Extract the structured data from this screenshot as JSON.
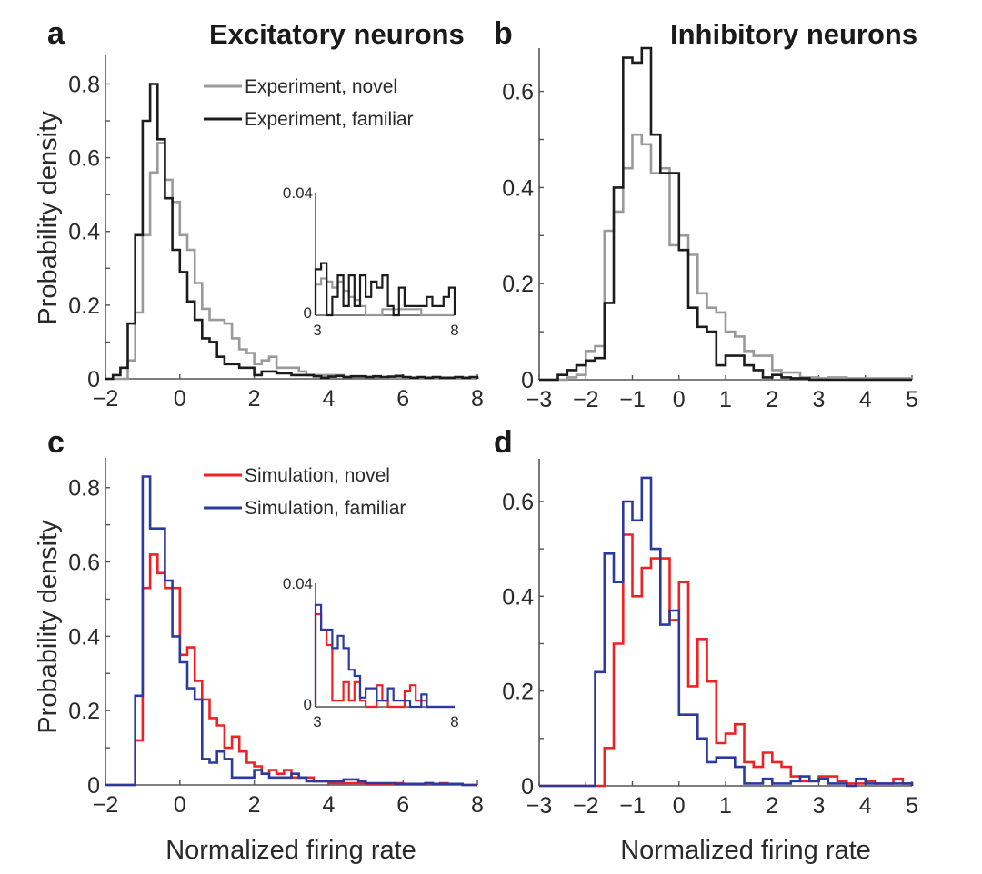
{
  "figure": {
    "colors": {
      "experiment_novel": "#9a9a9a",
      "experiment_familiar": "#1c1c1c",
      "simulation_novel": "#ee2222",
      "simulation_familiar": "#2b3a9e"
    }
  },
  "chart_data": [
    {
      "id": "a",
      "type": "histogram-step",
      "panel_letter": "a",
      "title": "Excitatory neurons",
      "xlabel": "",
      "ylabel": "Probability density",
      "xlim": [
        -2,
        8
      ],
      "ylim": [
        0,
        0.88
      ],
      "xticks": [
        -2,
        0,
        2,
        4,
        6,
        8
      ],
      "xtick_labels": [
        "−2",
        "0",
        "2",
        "4",
        "6",
        "8"
      ],
      "yticks": [
        0,
        0.2,
        0.4,
        0.6,
        0.8
      ],
      "ytick_labels": [
        "0",
        "0.2",
        "0.4",
        "0.6",
        "0.8"
      ],
      "bin_start": -2.0,
      "bin_width": 0.2,
      "legend": {
        "placement": "top-right",
        "entries": [
          "Experiment, novel",
          "Experiment, familiar"
        ]
      },
      "series": [
        {
          "name": "Experiment, novel",
          "color_key": "experiment_novel",
          "values": [
            0,
            0,
            0,
            0.05,
            0.18,
            0.39,
            0.56,
            0.64,
            0.54,
            0.48,
            0.39,
            0.35,
            0.26,
            0.19,
            0.16,
            0.16,
            0.15,
            0.11,
            0.08,
            0.07,
            0.04,
            0.05,
            0.06,
            0.03,
            0.03,
            0.03,
            0.02,
            0.01,
            0.01,
            0.01,
            0.01,
            0.01,
            0.005,
            0.005,
            0.005,
            0.005,
            0.005,
            0.003,
            0.003,
            0.003,
            0.003,
            0.002,
            0.002,
            0.002,
            0.002,
            0.002,
            0.002,
            0.002,
            0.002,
            0.002
          ]
        },
        {
          "name": "Experiment, familiar",
          "color_key": "experiment_familiar",
          "values": [
            0,
            0.01,
            0.03,
            0.15,
            0.39,
            0.7,
            0.8,
            0.65,
            0.49,
            0.35,
            0.29,
            0.21,
            0.16,
            0.11,
            0.1,
            0.06,
            0.04,
            0.04,
            0.03,
            0.03,
            0.01,
            0.02,
            0.02,
            0.015,
            0.015,
            0.01,
            0.01,
            0.01,
            0.007,
            0.003,
            0.006,
            0.008,
            0.005,
            0.007,
            0.007,
            0.005,
            0.007,
            0.005,
            0.006,
            0.008,
            0.005,
            0.003,
            0.005,
            0.003,
            0.005,
            0.003,
            0.003,
            0.005,
            0.003,
            0.005
          ]
        }
      ],
      "inset": {
        "xlim": [
          3,
          8
        ],
        "ylim": [
          0,
          0.04
        ],
        "xtick_labels": [
          "3",
          "8"
        ],
        "ytick_labels": [
          "0",
          "0.04"
        ],
        "bin_start": 3.0,
        "bin_width": 0.2,
        "series": [
          {
            "name": "Experiment, novel",
            "color_key": "experiment_novel",
            "values": [
              0.01,
              0.012,
              0.011,
              0.009,
              0.011,
              0.008,
              0.006,
              0.005,
              0.003,
              0,
              0,
              0,
              0.002,
              0.002,
              0.002,
              0.002,
              0.002,
              0.002,
              0.002,
              0,
              0,
              0,
              0,
              0,
              0
            ]
          },
          {
            "name": "Experiment, familiar",
            "color_key": "experiment_familiar",
            "values": [
              0.015,
              0.017,
              0,
              0.006,
              0.013,
              0.003,
              0.013,
              0.003,
              0.013,
              0.006,
              0.011,
              0.009,
              0.013,
              0.003,
              0,
              0.009,
              0.003,
              0.003,
              0.003,
              0.003,
              0.006,
              0.003,
              0.003,
              0.006,
              0.009
            ]
          }
        ]
      }
    },
    {
      "id": "b",
      "type": "histogram-step",
      "panel_letter": "b",
      "title": "Inhibitory neurons",
      "xlabel": "",
      "ylabel": "",
      "xlim": [
        -3,
        5
      ],
      "ylim": [
        0,
        0.69
      ],
      "xticks": [
        -3,
        -2,
        -1,
        0,
        1,
        2,
        3,
        4,
        5
      ],
      "xtick_labels": [
        "−3",
        "−2",
        "−1",
        "0",
        "1",
        "2",
        "3",
        "4",
        "5"
      ],
      "yticks": [
        0,
        0.2,
        0.4,
        0.6
      ],
      "ytick_labels": [
        "0",
        "0.2",
        "0.4",
        "0.6"
      ],
      "bin_start": -3.0,
      "bin_width": 0.2,
      "series": [
        {
          "name": "Experiment, novel",
          "color_key": "experiment_novel",
          "values": [
            0,
            0,
            0,
            0.005,
            0.01,
            0.06,
            0.07,
            0.31,
            0.35,
            0.44,
            0.51,
            0.49,
            0.43,
            0.44,
            0.28,
            0.3,
            0.26,
            0.18,
            0.15,
            0.14,
            0.1,
            0.09,
            0.06,
            0.05,
            0.05,
            0.02,
            0.015,
            0.015,
            0.005,
            0.005,
            0.003,
            0.005,
            0.005,
            0.003,
            0.003,
            0.003,
            0.003,
            0.003,
            0.003,
            0.003
          ]
        },
        {
          "name": "Experiment, familiar",
          "color_key": "experiment_familiar",
          "values": [
            0,
            0,
            0.01,
            0.02,
            0.03,
            0.04,
            0.045,
            0.16,
            0.4,
            0.67,
            0.66,
            0.69,
            0.51,
            0.43,
            0.43,
            0.27,
            0.15,
            0.11,
            0.1,
            0.03,
            0.05,
            0.05,
            0.03,
            0.02,
            0.005,
            0.01,
            0.005,
            0.003,
            0.003,
            0,
            0,
            0,
            0,
            0,
            0,
            0,
            0,
            0,
            0,
            0
          ]
        }
      ]
    },
    {
      "id": "c",
      "type": "histogram-step",
      "panel_letter": "c",
      "title": "",
      "xlabel": "Normalized firing rate",
      "ylabel": "Probability density",
      "xlim": [
        -2,
        8
      ],
      "ylim": [
        0,
        0.88
      ],
      "xticks": [
        -2,
        0,
        2,
        4,
        6,
        8
      ],
      "xtick_labels": [
        "−2",
        "0",
        "2",
        "4",
        "6",
        "8"
      ],
      "yticks": [
        0,
        0.2,
        0.4,
        0.6,
        0.8
      ],
      "ytick_labels": [
        "0",
        "0.2",
        "0.4",
        "0.6",
        "0.8"
      ],
      "bin_start": -2.0,
      "bin_width": 0.2,
      "legend": {
        "placement": "top-right",
        "entries": [
          "Simulation, novel",
          "Simulation, familiar"
        ]
      },
      "series": [
        {
          "name": "Simulation, novel",
          "color_key": "simulation_novel",
          "values": [
            0,
            0,
            0,
            0,
            0.12,
            0.53,
            0.62,
            0.57,
            0.53,
            0.53,
            0.35,
            0.37,
            0.28,
            0.23,
            0.18,
            0.16,
            0.1,
            0.13,
            0.09,
            0.06,
            0.05,
            0.03,
            0.04,
            0.03,
            0.04,
            0.02,
            0.02,
            0.02,
            0.01,
            0.01,
            0.005,
            0.005,
            0.005,
            0.005,
            0.005,
            0.003,
            0.003,
            0.003,
            0.003,
            0.005,
            0.003,
            0.003,
            0.003,
            0.005,
            0.003,
            0.005,
            0.003,
            0.003,
            0,
            0
          ]
        },
        {
          "name": "Simulation, familiar",
          "color_key": "simulation_familiar",
          "values": [
            0,
            0,
            0,
            0,
            0.24,
            0.83,
            0.69,
            0.69,
            0.55,
            0.4,
            0.33,
            0.26,
            0.23,
            0.07,
            0.06,
            0.09,
            0.07,
            0.02,
            0.02,
            0.02,
            0.04,
            0.03,
            0.02,
            0.02,
            0.02,
            0.03,
            0.02,
            0.01,
            0.01,
            0.01,
            0.01,
            0.01,
            0.015,
            0.015,
            0.01,
            0.005,
            0.005,
            0.005,
            0.005,
            0.003,
            0.003,
            0.003,
            0.003,
            0.005,
            0.003,
            0.003,
            0.003,
            0.003,
            0,
            0
          ]
        }
      ],
      "inset": {
        "xlim": [
          3,
          8
        ],
        "ylim": [
          0,
          0.04
        ],
        "xtick_labels": [
          "3",
          "8"
        ],
        "ytick_labels": [
          "0",
          "0.04"
        ],
        "bin_start": 3.0,
        "bin_width": 0.2,
        "series": [
          {
            "name": "Simulation, novel",
            "color_key": "simulation_novel",
            "values": [
              0.03,
              0.025,
              0.02,
              0.002,
              0.002,
              0.008,
              0.002,
              0.008,
              0.002,
              0.0,
              0.0,
              0.007,
              0.002,
              0.0,
              0.0,
              0.0,
              0.005,
              0.007,
              0.002,
              0.002,
              0.0,
              0.0,
              0.0,
              0.0,
              0.0
            ]
          },
          {
            "name": "Simulation, familiar",
            "color_key": "simulation_familiar",
            "values": [
              0.033,
              0.025,
              0.025,
              0.019,
              0.023,
              0.019,
              0.012,
              0.01,
              0.003,
              0.006,
              0.006,
              0.002,
              0.002,
              0.006,
              0.002,
              0.002,
              0.002,
              0.0,
              0.0,
              0.004,
              0.0,
              0.0,
              0.0,
              0.0,
              0.0
            ]
          }
        ]
      }
    },
    {
      "id": "d",
      "type": "histogram-step",
      "panel_letter": "d",
      "title": "",
      "xlabel": "Normalized firing rate",
      "ylabel": "",
      "xlim": [
        -3,
        5
      ],
      "ylim": [
        0,
        0.69
      ],
      "xticks": [
        -3,
        -2,
        -1,
        0,
        1,
        2,
        3,
        4,
        5
      ],
      "xtick_labels": [
        "−3",
        "−2",
        "−1",
        "0",
        "1",
        "2",
        "3",
        "4",
        "5"
      ],
      "yticks": [
        0,
        0.2,
        0.4,
        0.6
      ],
      "ytick_labels": [
        "0",
        "0.2",
        "0.4",
        "0.6"
      ],
      "bin_start": -3.0,
      "bin_width": 0.2,
      "series": [
        {
          "name": "Simulation, novel",
          "color_key": "simulation_novel",
          "values": [
            0,
            0,
            0,
            0,
            0,
            0,
            0,
            0.08,
            0.3,
            0.53,
            0.4,
            0.46,
            0.48,
            0.48,
            0.35,
            0.43,
            0.21,
            0.31,
            0.22,
            0.09,
            0.11,
            0.13,
            0.05,
            0.04,
            0.07,
            0.05,
            0.04,
            0.02,
            0.01,
            0.01,
            0.02,
            0.02,
            0.01,
            0.005,
            0.005,
            0.01,
            0.005,
            0.005,
            0.015,
            0.005
          ]
        },
        {
          "name": "Simulation, familiar",
          "color_key": "simulation_familiar",
          "values": [
            0,
            0,
            0,
            0,
            0,
            0,
            0.24,
            0.49,
            0.43,
            0.6,
            0.56,
            0.65,
            0.5,
            0.34,
            0.37,
            0.15,
            0.15,
            0.1,
            0.05,
            0.06,
            0.06,
            0.04,
            0.005,
            0.005,
            0.015,
            0.005,
            0.005,
            0.01,
            0.02,
            0.01,
            0.015,
            0.005,
            0.005,
            0.0,
            0.015,
            0.005,
            0.005,
            0.005,
            0.005,
            0.005
          ]
        }
      ]
    }
  ]
}
